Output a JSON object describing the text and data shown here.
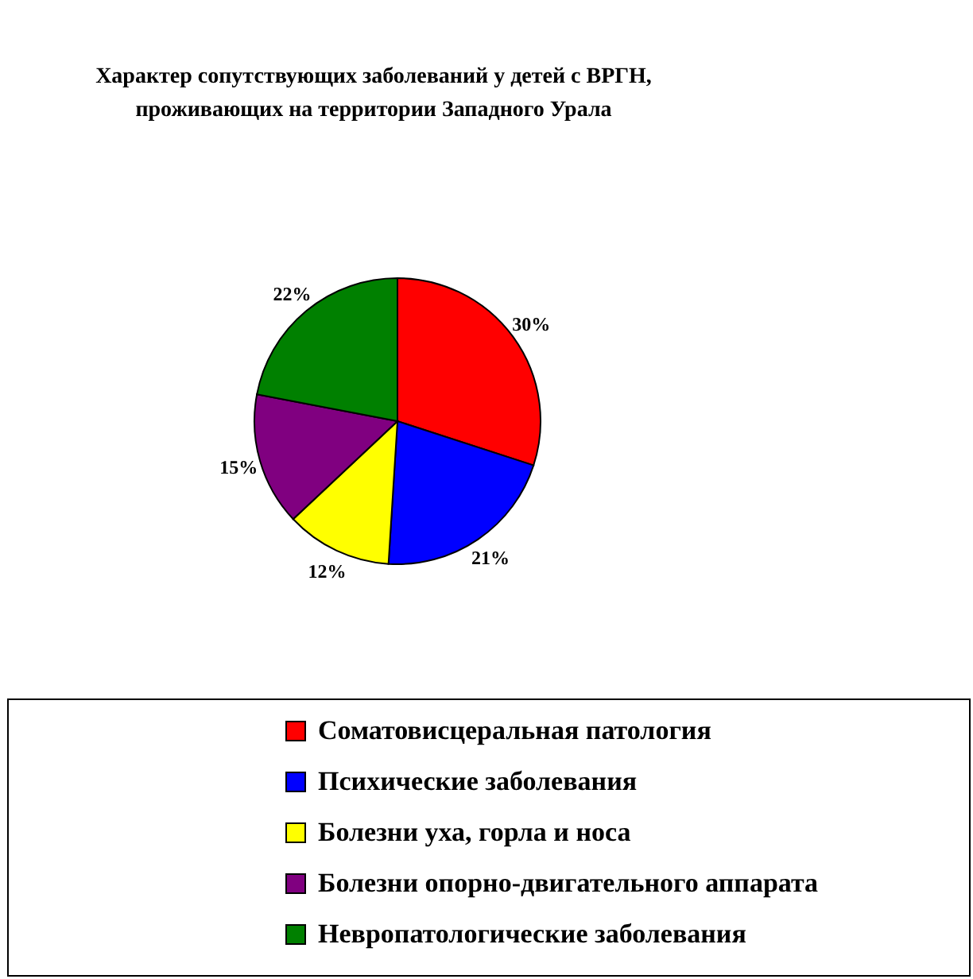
{
  "chart_data": {
    "type": "pie",
    "title": "Характер сопутствующих заболеваний у детей с ВРГН,\nпроживающих на территории Западного Урала",
    "categories": [
      "Соматовисцеральная патология",
      "Психические заболевания",
      "Болезни уха, горла и носа",
      "Болезни опорно-двигательного аппарата",
      "Невропатологические заболевания"
    ],
    "values": [
      30,
      21,
      12,
      15,
      22
    ],
    "value_labels": [
      "30%",
      "21%",
      "12%",
      "15%",
      "22%"
    ],
    "colors": [
      "#ff0000",
      "#0000ff",
      "#ffff00",
      "#800080",
      "#008000"
    ],
    "legend": "bottom"
  }
}
